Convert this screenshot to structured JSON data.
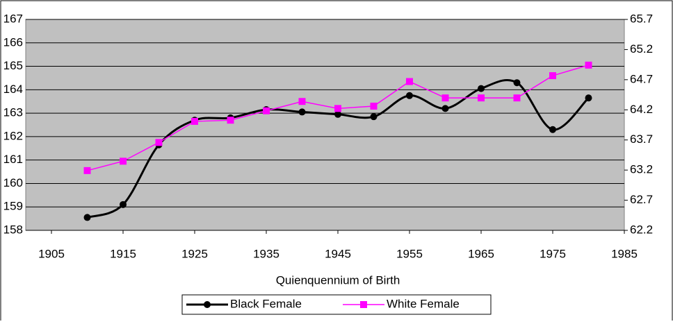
{
  "chart_data": {
    "type": "line",
    "x_label": "Quienquennium of Birth",
    "x": [
      1910,
      1915,
      1920,
      1925,
      1930,
      1935,
      1940,
      1945,
      1950,
      1955,
      1960,
      1965,
      1970,
      1975,
      1980
    ],
    "series": [
      {
        "name": "Black Female",
        "color": "#000000",
        "marker": "circle",
        "smooth": true,
        "values": [
          158.55,
          159.1,
          161.65,
          162.7,
          162.8,
          163.15,
          163.05,
          162.95,
          162.85,
          163.75,
          163.2,
          164.05,
          164.3,
          162.3,
          163.65
        ]
      },
      {
        "name": "White Female",
        "color": "#ff00ff",
        "marker": "square",
        "smooth": false,
        "values": [
          160.55,
          160.95,
          161.75,
          162.65,
          162.7,
          163.1,
          163.5,
          163.2,
          163.3,
          164.35,
          163.65,
          163.65,
          163.65,
          164.6,
          165.05
        ]
      }
    ],
    "xlim": [
      1905,
      1985
    ],
    "xticks": [
      1905,
      1915,
      1925,
      1935,
      1945,
      1955,
      1965,
      1975,
      1985
    ],
    "ylim": [
      158,
      167
    ],
    "yticks": [
      158,
      159,
      160,
      161,
      162,
      163,
      164,
      165,
      166,
      167
    ],
    "y2lim": [
      62.2,
      65.7
    ],
    "y2ticks": [
      62.2,
      62.7,
      63.2,
      63.7,
      64.2,
      64.7,
      65.2,
      65.7
    ],
    "grid": true,
    "legend": "bottom"
  }
}
